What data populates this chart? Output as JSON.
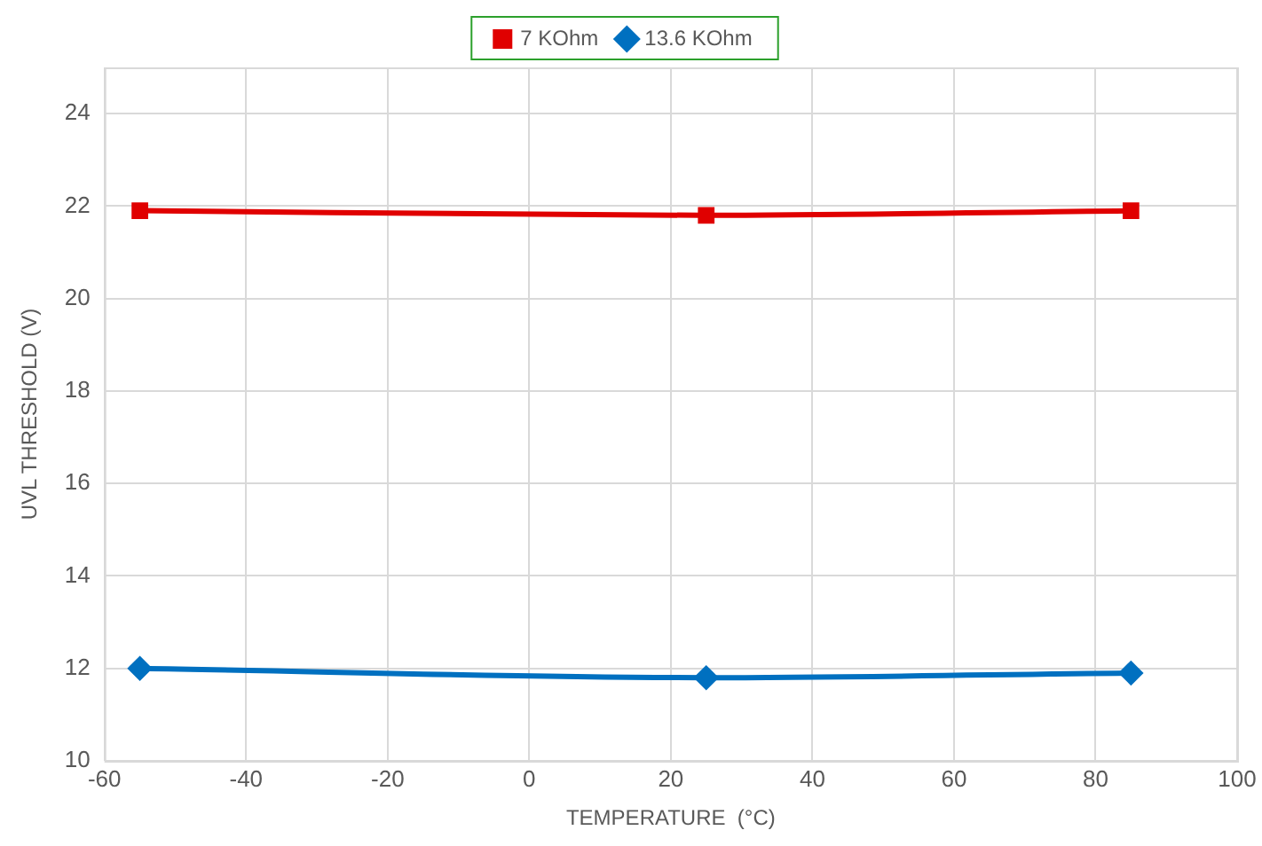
{
  "chart_data": {
    "type": "line",
    "xlabel": "TEMPERATURE  (°C)",
    "ylabel": "UVL THRESHOLD (V)",
    "x": [
      -55,
      25,
      85
    ],
    "series": [
      {
        "name": "7 KOhm",
        "color": "#e00000",
        "marker": "square",
        "values": [
          21.9,
          21.8,
          21.9
        ]
      },
      {
        "name": "13.6 KOhm",
        "color": "#0070c0",
        "marker": "diamond",
        "values": [
          12.0,
          11.8,
          11.9
        ]
      }
    ],
    "xlim": [
      -60,
      100
    ],
    "xticks": [
      -60,
      -40,
      -20,
      0,
      20,
      40,
      60,
      80,
      100
    ],
    "ylim": [
      10,
      25
    ],
    "yticks": [
      10,
      12,
      14,
      16,
      18,
      20,
      22,
      24
    ],
    "grid": true,
    "legend": "top"
  }
}
